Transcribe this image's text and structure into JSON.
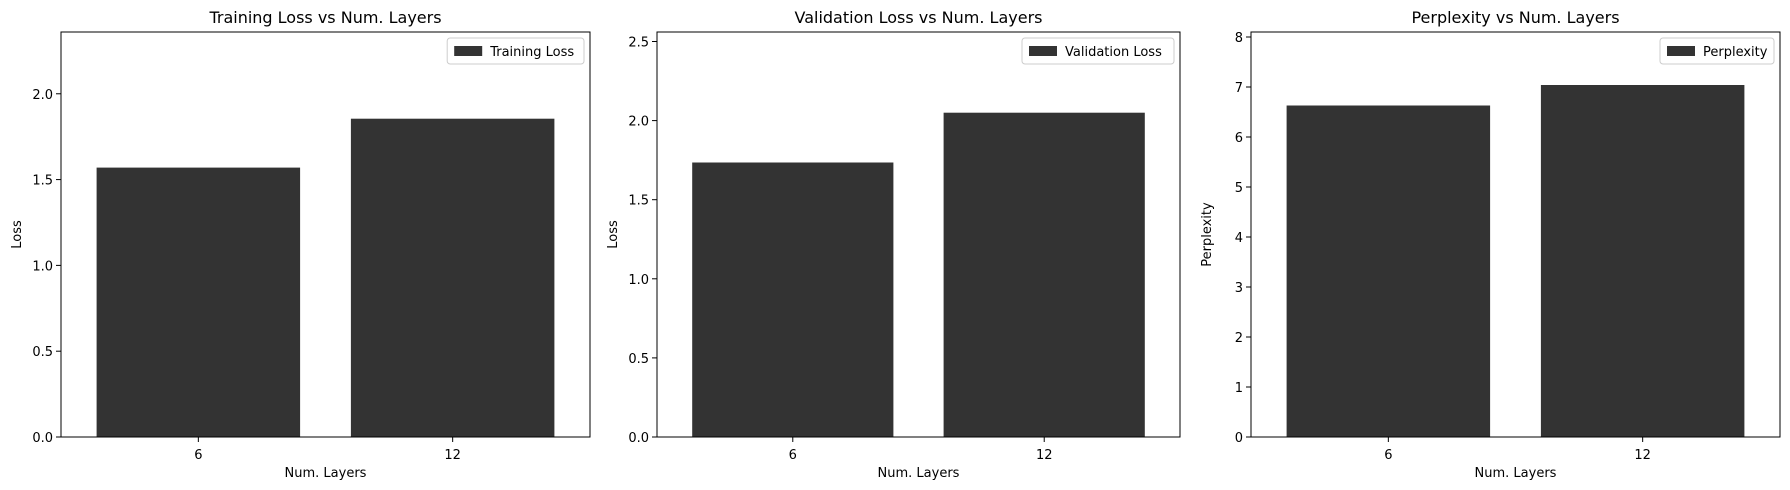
{
  "bar_color": "#333333",
  "chart_data": [
    {
      "type": "bar",
      "title": "Training Loss vs Num. Layers",
      "xlabel": "Num. Layers",
      "ylabel": "Loss",
      "categories": [
        "6",
        "12"
      ],
      "series": [
        {
          "name": "Training Loss",
          "values": [
            1.57,
            1.855
          ]
        }
      ],
      "ylim": [
        0,
        2.36
      ],
      "yticks": [
        0.0,
        0.5,
        1.0,
        1.5,
        2.0
      ],
      "ytick_labels": [
        "0.0",
        "0.5",
        "1.0",
        "1.5",
        "2.0"
      ],
      "legend": "top-right",
      "grid": false
    },
    {
      "type": "bar",
      "title": "Validation Loss vs Num. Layers",
      "xlabel": "Num. Layers",
      "ylabel": "Loss",
      "categories": [
        "6",
        "12"
      ],
      "series": [
        {
          "name": "Validation Loss",
          "values": [
            1.735,
            2.05
          ]
        }
      ],
      "ylim": [
        0,
        2.56
      ],
      "yticks": [
        0.0,
        0.5,
        1.0,
        1.5,
        2.0,
        2.5
      ],
      "ytick_labels": [
        "0.0",
        "0.5",
        "1.0",
        "1.5",
        "2.0",
        "2.5"
      ],
      "legend": "top-right",
      "grid": false
    },
    {
      "type": "bar",
      "title": "Perplexity vs Num. Layers",
      "xlabel": "Num. Layers",
      "ylabel": "Perplexity",
      "categories": [
        "6",
        "12"
      ],
      "series": [
        {
          "name": "Perplexity",
          "values": [
            6.63,
            7.04
          ]
        }
      ],
      "ylim": [
        0,
        8.1
      ],
      "yticks": [
        0,
        1,
        2,
        3,
        4,
        5,
        6,
        7,
        8
      ],
      "ytick_labels": [
        "0",
        "1",
        "2",
        "3",
        "4",
        "5",
        "6",
        "7",
        "8"
      ],
      "legend": "top-right",
      "grid": false
    }
  ]
}
